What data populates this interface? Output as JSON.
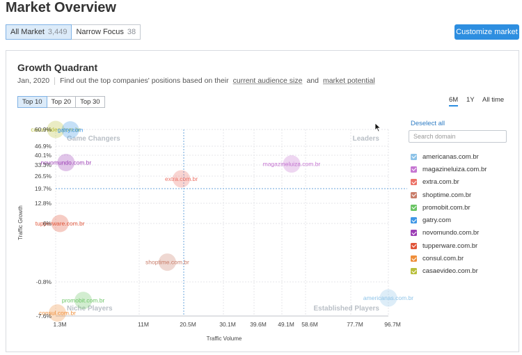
{
  "header": {
    "title": "Market Overview"
  },
  "segments": [
    {
      "label": "All Market",
      "count": "3,449",
      "active": true
    },
    {
      "label": "Narrow Focus",
      "count": "38",
      "active": false
    }
  ],
  "customize_label": "Customize market",
  "card": {
    "title": "Growth Quadrant",
    "date": "Jan, 2020",
    "description_prefix": "Find out the top companies' positions based on their",
    "description_link1": "current audience size",
    "description_and": "and",
    "description_link2": "market potential"
  },
  "top_buttons": [
    {
      "label": "Top 10",
      "active": true
    },
    {
      "label": "Top 20",
      "active": false
    },
    {
      "label": "Top 30",
      "active": false
    }
  ],
  "periods": [
    {
      "label": "6M",
      "active": true
    },
    {
      "label": "1Y",
      "active": false
    },
    {
      "label": "All time",
      "active": false
    }
  ],
  "sidebar": {
    "deselect_label": "Deselect all",
    "search_placeholder": "Search domain",
    "domains": [
      {
        "label": "americanas.com.br",
        "color": "#8dc3e8"
      },
      {
        "label": "magazineluiza.com.br",
        "color": "#c676d2"
      },
      {
        "label": "extra.com.br",
        "color": "#ec7267"
      },
      {
        "label": "shoptime.com.br",
        "color": "#c97d6a"
      },
      {
        "label": "promobit.com.br",
        "color": "#6bc565"
      },
      {
        "label": "gatry.com",
        "color": "#3f97e6"
      },
      {
        "label": "novomundo.com.br",
        "color": "#9c3eb5"
      },
      {
        "label": "tupperware.com.br",
        "color": "#e0553a"
      },
      {
        "label": "consul.com.br",
        "color": "#ef8e3a"
      },
      {
        "label": "casaevideo.com.br",
        "color": "#b8bf3a"
      }
    ]
  },
  "chart_data": {
    "type": "scatter",
    "xlabel": "Traffic Volume",
    "ylabel": "Traffic Growth",
    "x_ticks": [
      "1.3M",
      "11M",
      "20.5M",
      "30.1M",
      "39.6M",
      "49.1M",
      "58.6M",
      "77.7M",
      "96.7M"
    ],
    "x_tick_values": [
      1.3,
      11,
      20.5,
      30.1,
      39.6,
      49.1,
      58.6,
      77.7,
      96.7
    ],
    "y_ticks": [
      "60.9%",
      "46.9%",
      "40.1%",
      "33.3%",
      "26.5%",
      "19.7%",
      "12.8%",
      "6%",
      "-0.8%",
      "-7.6%"
    ],
    "y_tick_values": [
      60.9,
      46.9,
      40.1,
      33.3,
      26.5,
      19.7,
      12.8,
      6,
      -0.8,
      -7.6
    ],
    "x_divider": 20.5,
    "y_divider": 19.7,
    "quadrants": {
      "top_left": "Game Changers",
      "top_right": "Leaders",
      "bottom_left": "Niche Players",
      "bottom_right": "Established Players"
    },
    "points": [
      {
        "name": "casaevideo.com.br",
        "x": 1.3,
        "y": 60.9,
        "color": "#b8bf3a"
      },
      {
        "name": "gatry.com",
        "x": 3.0,
        "y": 60.5,
        "color": "#3f97e6"
      },
      {
        "name": "novomundo.com.br",
        "x": 2.5,
        "y": 35.0,
        "color": "#9c3eb5"
      },
      {
        "name": "extra.com.br",
        "x": 20.0,
        "y": 25.0,
        "color": "#ec7267"
      },
      {
        "name": "magazineluiza.com.br",
        "x": 53.0,
        "y": 34.0,
        "color": "#c676d2"
      },
      {
        "name": "tupperware.com.br",
        "x": 1.8,
        "y": 6.0,
        "color": "#e0553a"
      },
      {
        "name": "shoptime.com.br",
        "x": 17.0,
        "y": 1.5,
        "color": "#c97d6a"
      },
      {
        "name": "promobit.com.br",
        "x": 4.5,
        "y": -4.5,
        "color": "#6bc565"
      },
      {
        "name": "consul.com.br",
        "x": 1.5,
        "y": -7.0,
        "color": "#ef8e3a"
      },
      {
        "name": "americanas.com.br",
        "x": 96.7,
        "y": -4.0,
        "color": "#8dc3e8"
      }
    ]
  }
}
